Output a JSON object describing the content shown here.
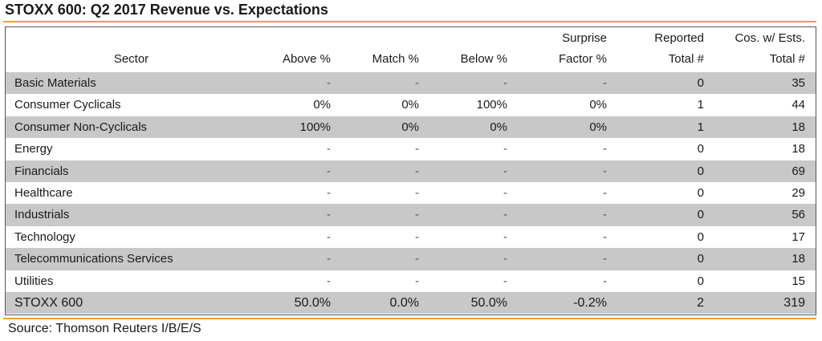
{
  "title": "STOXX 600: Q2 2017 Revenue vs. Expectations",
  "source": "Source: Thomson Reuters I/B/E/S",
  "colors": {
    "accent_rule": "#f0a02c",
    "shaded_row": "#c8c8c8"
  },
  "table": {
    "headers": {
      "sector": "Sector",
      "above": "Above %",
      "match": "Match %",
      "below": "Below %",
      "surprise_line1": "Surprise",
      "surprise_line2": "Factor %",
      "reported_line1": "Reported",
      "reported_line2": "Total #",
      "cos_line1": "Cos. w/ Ests.",
      "cos_line2": "Total #"
    },
    "rows": [
      {
        "sector": "Basic Materials",
        "above": "-",
        "match": "-",
        "below": "-",
        "surprise": "-",
        "reported": "0",
        "cos": "35"
      },
      {
        "sector": "Consumer Cyclicals",
        "above": "0%",
        "match": "0%",
        "below": "100%",
        "surprise": "0%",
        "reported": "1",
        "cos": "44"
      },
      {
        "sector": "Consumer Non-Cyclicals",
        "above": "100%",
        "match": "0%",
        "below": "0%",
        "surprise": "0%",
        "reported": "1",
        "cos": "18"
      },
      {
        "sector": "Energy",
        "above": "-",
        "match": "-",
        "below": "-",
        "surprise": "-",
        "reported": "0",
        "cos": "18"
      },
      {
        "sector": "Financials",
        "above": "-",
        "match": "-",
        "below": "-",
        "surprise": "-",
        "reported": "0",
        "cos": "69"
      },
      {
        "sector": "Healthcare",
        "above": "-",
        "match": "-",
        "below": "-",
        "surprise": "-",
        "reported": "0",
        "cos": "29"
      },
      {
        "sector": "Industrials",
        "above": "-",
        "match": "-",
        "below": "-",
        "surprise": "-",
        "reported": "0",
        "cos": "56"
      },
      {
        "sector": "Technology",
        "above": "-",
        "match": "-",
        "below": "-",
        "surprise": "-",
        "reported": "0",
        "cos": "17"
      },
      {
        "sector": "Telecommunications Services",
        "above": "-",
        "match": "-",
        "below": "-",
        "surprise": "-",
        "reported": "0",
        "cos": "18"
      },
      {
        "sector": "Utilities",
        "above": "-",
        "match": "-",
        "below": "-",
        "surprise": "-",
        "reported": "0",
        "cos": "15"
      }
    ],
    "total": {
      "sector": "STOXX 600",
      "above": "50.0%",
      "match": "0.0%",
      "below": "50.0%",
      "surprise": "-0.2%",
      "reported": "2",
      "cos": "319"
    }
  }
}
